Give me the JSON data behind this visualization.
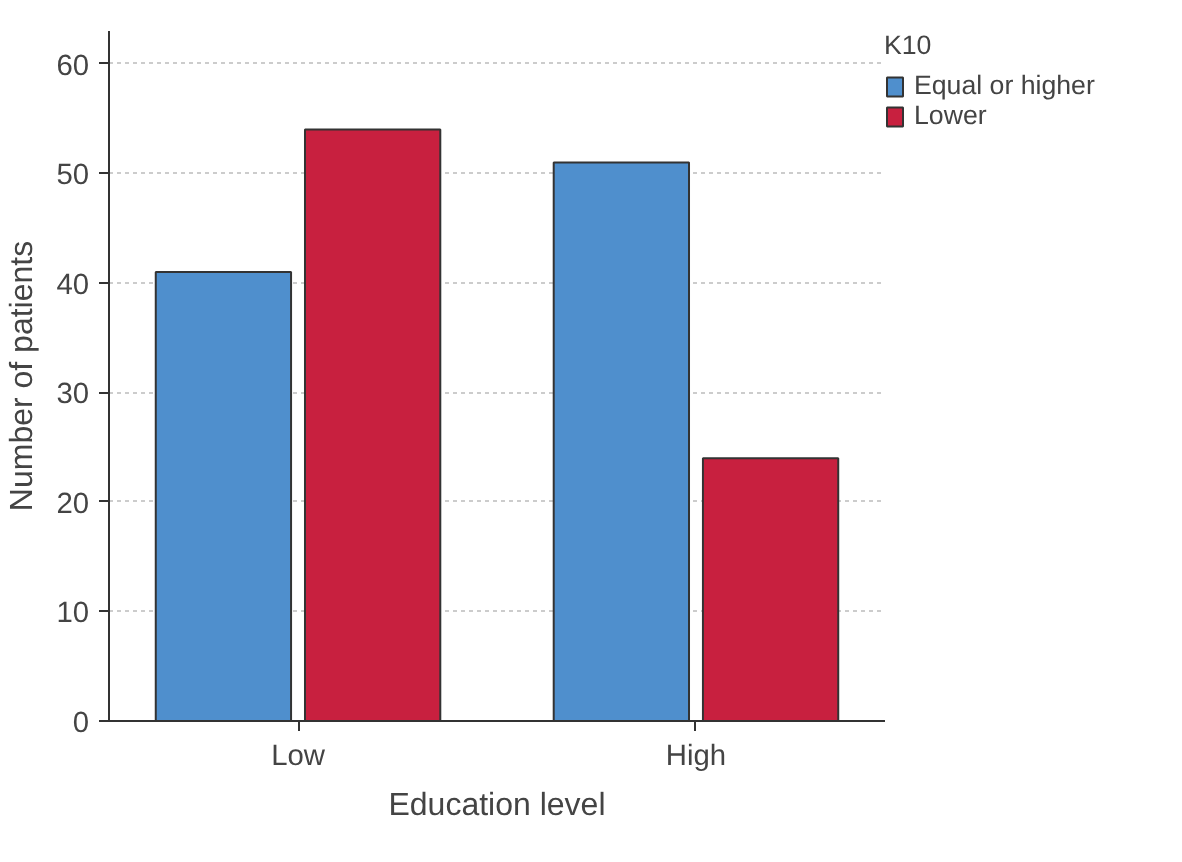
{
  "chart_data": {
    "type": "bar",
    "xlabel": "Education level",
    "ylabel": "Number of patients",
    "legend_title": "K10",
    "categories": [
      "Low",
      "High"
    ],
    "series": [
      {
        "name": "Equal or higher",
        "color": "#4f8fcd",
        "values": [
          41,
          51
        ]
      },
      {
        "name": "Lower",
        "color": "#c8203f",
        "values": [
          54,
          24
        ]
      }
    ],
    "ylim": [
      0,
      63
    ],
    "yticks": [
      0,
      10,
      20,
      30,
      40,
      50,
      60
    ],
    "grid": "y",
    "legend": "top right"
  }
}
